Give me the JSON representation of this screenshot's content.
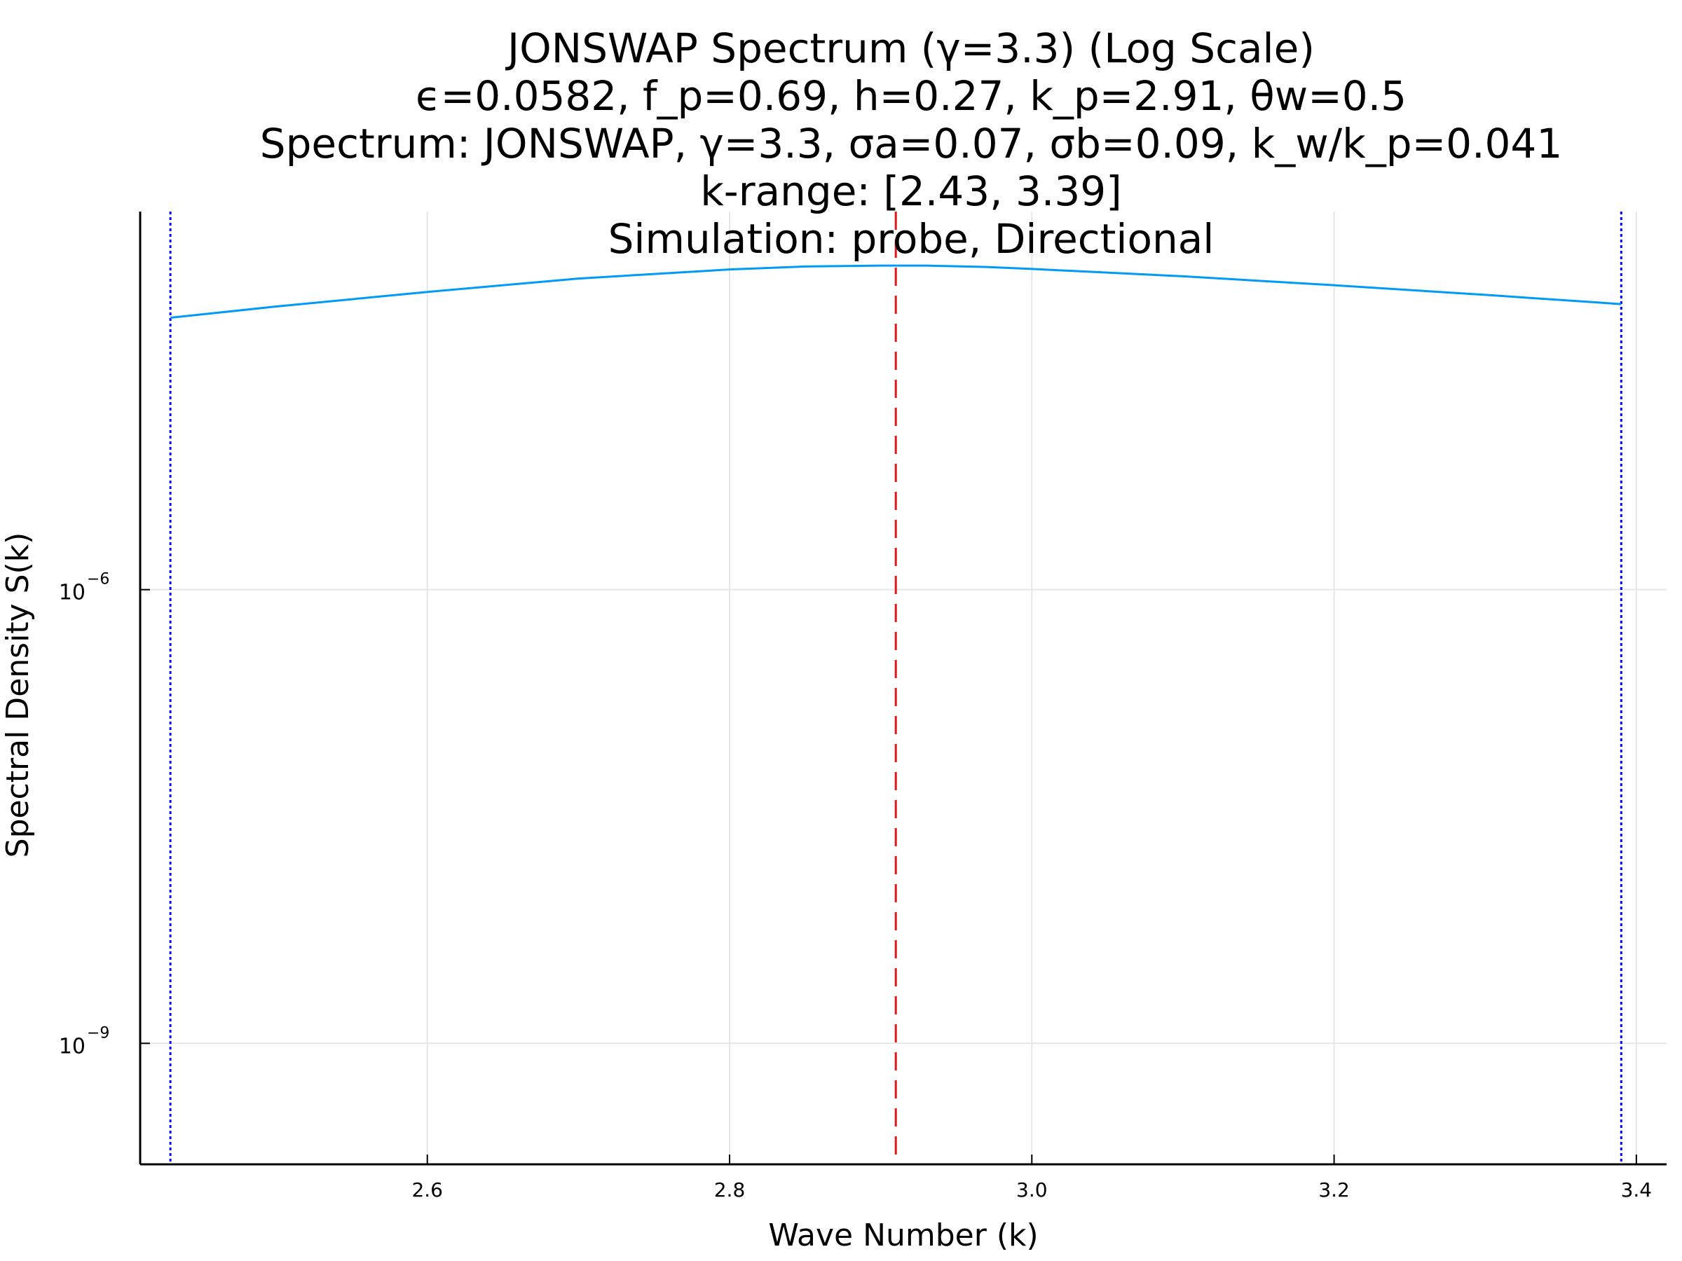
{
  "chart_data": {
    "type": "line",
    "title_lines": [
      "JONSWAP Spectrum (γ=3.3) (Log Scale)",
      "ϵ=0.0582, f_p=0.69, h=0.27, k_p=2.91, θw=0.5",
      "Spectrum: JONSWAP, γ=3.3, σa=0.07, σb=0.09, k_w/k_p=0.041",
      "k-range: [2.43, 3.39]",
      "Simulation: probe, Directional"
    ],
    "xlabel": "Wave Number (k)",
    "ylabel": "Spectral Density S(k)",
    "y_scale": "log",
    "xlim": [
      2.41,
      3.42
    ],
    "ylim_log10": [
      -9.8,
      -3.5
    ],
    "x_ticks": [
      2.6,
      2.8,
      3.0,
      3.2,
      3.4
    ],
    "x_tick_labels": [
      "2.6",
      "2.8",
      "3.0",
      "3.2",
      "3.4"
    ],
    "y_ticks": [
      {
        "base": "10",
        "exp": "−6",
        "log10": -6
      },
      {
        "base": "10",
        "exp": "−9",
        "log10": -9
      }
    ],
    "grid": true,
    "legend": "none",
    "series": [
      {
        "color": "#009af9",
        "style": "solid",
        "x": [
          2.43,
          2.5,
          2.6,
          2.7,
          2.8,
          2.85,
          2.9,
          2.93,
          2.97,
          3.0,
          3.1,
          3.2,
          3.3,
          3.39
        ],
        "y": [
          6.28e-05,
          7.45e-05,
          9.3e-05,
          0.000114,
          0.000131,
          0.000137,
          0.000139,
          0.000139,
          0.000136,
          0.000132,
          0.000118,
          0.000103,
          8.9e-05,
          7.73e-05
        ]
      }
    ],
    "vlines": [
      {
        "x": 2.43,
        "color": "#0000ff",
        "style": "dotted"
      },
      {
        "x": 3.39,
        "color": "#0000ff",
        "style": "dotted"
      },
      {
        "x": 2.91,
        "color": "#e0191b",
        "style": "dashed"
      }
    ]
  }
}
